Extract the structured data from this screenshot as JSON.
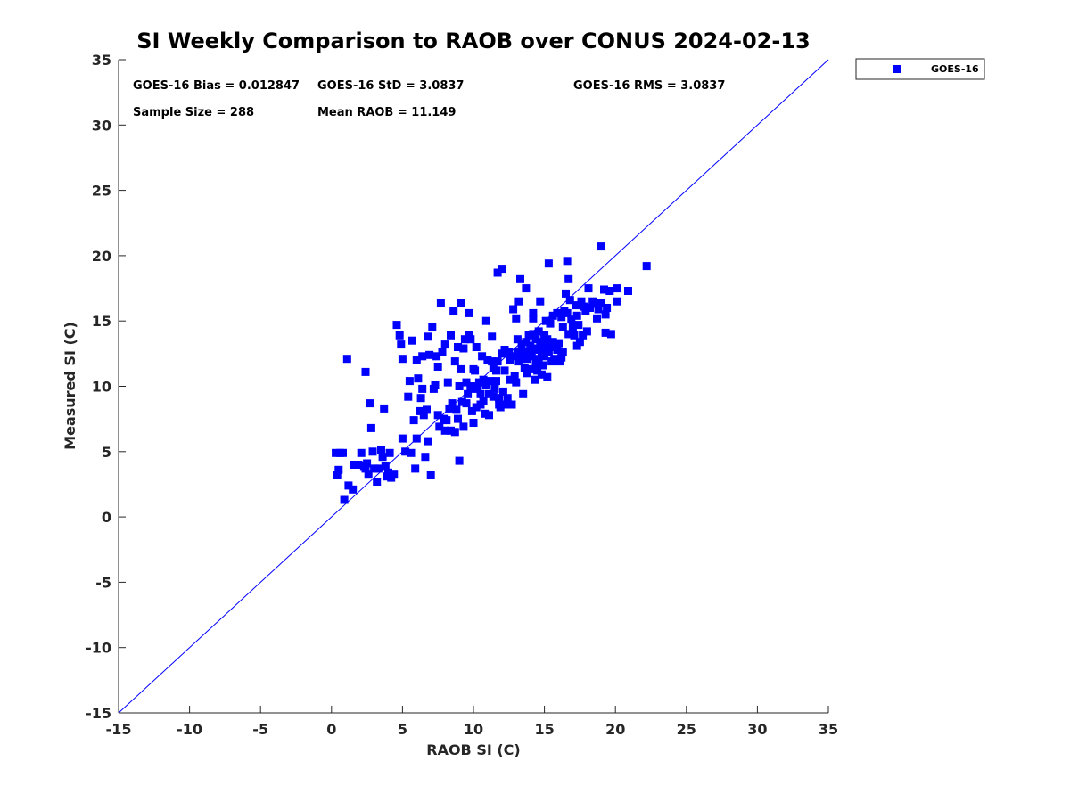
{
  "chart_data": {
    "type": "scatter",
    "title": "SI Weekly Comparison to RAOB over CONUS 2024-02-13",
    "xlabel": "RAOB SI (C)",
    "ylabel": "Measured SI (C)",
    "xlim": [
      -15,
      35
    ],
    "ylim": [
      -15,
      35
    ],
    "xticks": [
      "-15",
      "-10",
      "-5",
      "0",
      "5",
      "10",
      "15",
      "20",
      "25",
      "30",
      "35"
    ],
    "yticks": [
      "-15",
      "-10",
      "-5",
      "0",
      "5",
      "10",
      "15",
      "20",
      "25",
      "30",
      "35"
    ],
    "reference_line": {
      "x": [
        -15,
        35
      ],
      "y": [
        -15,
        35
      ]
    },
    "grid": false,
    "legend": {
      "position": "outside-top-right",
      "entries": [
        "GOES-16"
      ]
    },
    "annotations": {
      "bias": "GOES-16 Bias = 0.012847",
      "std": "GOES-16 StD = 3.0837",
      "rms": "GOES-16 RMS = 3.0837",
      "sample_size": "Sample Size = 288",
      "mean_raob": "Mean RAOB = 11.149"
    },
    "series": [
      {
        "name": "GOES-16",
        "color": "#0000ff",
        "marker": "square",
        "points": [
          [
            0.3,
            4.9
          ],
          [
            0.6,
            4.9
          ],
          [
            0.8,
            4.9
          ],
          [
            0.4,
            3.2
          ],
          [
            0.5,
            3.6
          ],
          [
            0.9,
            1.3
          ],
          [
            1.2,
            2.4
          ],
          [
            1.5,
            2.1
          ],
          [
            1.1,
            12.1
          ],
          [
            1.6,
            4.0
          ],
          [
            1.9,
            4.0
          ],
          [
            2.1,
            4.9
          ],
          [
            2.3,
            3.9
          ],
          [
            2.4,
            3.7
          ],
          [
            2.5,
            4.1
          ],
          [
            2.6,
            3.3
          ],
          [
            2.7,
            8.7
          ],
          [
            2.8,
            6.8
          ],
          [
            2.9,
            5.0
          ],
          [
            2.4,
            11.1
          ],
          [
            3.0,
            3.7
          ],
          [
            3.2,
            2.7
          ],
          [
            3.3,
            3.7
          ],
          [
            3.5,
            5.1
          ],
          [
            3.6,
            4.6
          ],
          [
            3.7,
            8.3
          ],
          [
            3.8,
            3.9
          ],
          [
            3.9,
            3.1
          ],
          [
            4.0,
            3.4
          ],
          [
            4.1,
            4.9
          ],
          [
            4.2,
            3.0
          ],
          [
            4.4,
            3.3
          ],
          [
            4.6,
            14.7
          ],
          [
            4.8,
            13.9
          ],
          [
            4.9,
            13.2
          ],
          [
            5.0,
            6.0
          ],
          [
            5.0,
            12.1
          ],
          [
            5.2,
            5.0
          ],
          [
            5.4,
            9.2
          ],
          [
            5.5,
            10.4
          ],
          [
            5.6,
            4.9
          ],
          [
            5.7,
            13.5
          ],
          [
            5.8,
            7.4
          ],
          [
            5.9,
            3.7
          ],
          [
            6.0,
            6.0
          ],
          [
            6.0,
            12.0
          ],
          [
            6.1,
            10.6
          ],
          [
            6.2,
            8.1
          ],
          [
            6.3,
            9.1
          ],
          [
            6.4,
            9.8
          ],
          [
            6.4,
            12.3
          ],
          [
            6.5,
            7.8
          ],
          [
            6.6,
            4.6
          ],
          [
            6.7,
            8.2
          ],
          [
            6.8,
            5.8
          ],
          [
            6.8,
            13.8
          ],
          [
            6.9,
            12.4
          ],
          [
            7.0,
            3.2
          ],
          [
            7.1,
            14.5
          ],
          [
            7.2,
            9.8
          ],
          [
            7.3,
            10.1
          ],
          [
            7.4,
            12.3
          ],
          [
            7.5,
            7.8
          ],
          [
            7.5,
            11.5
          ],
          [
            7.6,
            6.9
          ],
          [
            7.7,
            16.4
          ],
          [
            7.8,
            12.6
          ],
          [
            7.9,
            7.5
          ],
          [
            8.0,
            6.6
          ],
          [
            8.0,
            13.2
          ],
          [
            8.1,
            7.4
          ],
          [
            8.2,
            10.3
          ],
          [
            8.3,
            8.3
          ],
          [
            8.4,
            6.6
          ],
          [
            8.4,
            13.9
          ],
          [
            8.5,
            8.7
          ],
          [
            8.6,
            15.8
          ],
          [
            8.7,
            6.5
          ],
          [
            8.7,
            11.9
          ],
          [
            8.8,
            8.2
          ],
          [
            8.9,
            7.5
          ],
          [
            8.9,
            13.0
          ],
          [
            9.0,
            4.3
          ],
          [
            9.0,
            10.0
          ],
          [
            9.1,
            11.3
          ],
          [
            9.1,
            16.4
          ],
          [
            9.2,
            8.8
          ],
          [
            9.3,
            6.9
          ],
          [
            9.3,
            12.9
          ],
          [
            9.4,
            13.6
          ],
          [
            9.5,
            8.7
          ],
          [
            9.5,
            10.3
          ],
          [
            9.6,
            9.4
          ],
          [
            9.7,
            13.9
          ],
          [
            9.7,
            15.6
          ],
          [
            9.8,
            13.6
          ],
          [
            9.8,
            9.8
          ],
          [
            9.9,
            8.1
          ],
          [
            9.9,
            10.0
          ],
          [
            10.0,
            11.3
          ],
          [
            10.0,
            7.2
          ],
          [
            10.1,
            11.2
          ],
          [
            10.2,
            8.4
          ],
          [
            10.2,
            13.0
          ],
          [
            10.3,
            9.8
          ],
          [
            10.4,
            10.3
          ],
          [
            10.5,
            8.6
          ],
          [
            10.5,
            9.4
          ],
          [
            10.6,
            12.3
          ],
          [
            10.7,
            10.5
          ],
          [
            10.7,
            8.9
          ],
          [
            10.8,
            7.9
          ],
          [
            10.9,
            10.1
          ],
          [
            10.9,
            15.0
          ],
          [
            11.0,
            12.0
          ],
          [
            11.1,
            9.4
          ],
          [
            11.1,
            7.8
          ],
          [
            11.2,
            10.4
          ],
          [
            11.3,
            11.9
          ],
          [
            11.3,
            13.8
          ],
          [
            11.4,
            9.2
          ],
          [
            11.4,
            11.4
          ],
          [
            11.5,
            9.8
          ],
          [
            11.6,
            11.2
          ],
          [
            11.6,
            10.4
          ],
          [
            11.7,
            11.9
          ],
          [
            11.7,
            18.7
          ],
          [
            11.8,
            9.1
          ],
          [
            11.8,
            8.6
          ],
          [
            11.9,
            8.4
          ],
          [
            12.0,
            12.5
          ],
          [
            12.0,
            19.0
          ],
          [
            12.1,
            9.6
          ],
          [
            12.2,
            11.2
          ],
          [
            12.2,
            12.8
          ],
          [
            12.3,
            8.6
          ],
          [
            12.4,
            9.1
          ],
          [
            12.5,
            12.6
          ],
          [
            12.6,
            10.5
          ],
          [
            12.6,
            12.0
          ],
          [
            12.7,
            8.6
          ],
          [
            12.8,
            15.9
          ],
          [
            12.9,
            10.8
          ],
          [
            12.9,
            12.3
          ],
          [
            13.0,
            10.3
          ],
          [
            13.0,
            15.2
          ],
          [
            13.1,
            12.6
          ],
          [
            13.1,
            13.6
          ],
          [
            13.2,
            16.5
          ],
          [
            13.2,
            11.9
          ],
          [
            13.3,
            18.2
          ],
          [
            13.4,
            12.1
          ],
          [
            13.4,
            13.2
          ],
          [
            13.5,
            9.4
          ],
          [
            13.6,
            12.6
          ],
          [
            13.6,
            11.4
          ],
          [
            13.7,
            17.5
          ],
          [
            13.7,
            13.4
          ],
          [
            13.8,
            12.1
          ],
          [
            13.8,
            11.0
          ],
          [
            13.9,
            13.9
          ],
          [
            13.9,
            12.5
          ],
          [
            14.0,
            11.3
          ],
          [
            14.0,
            13.1
          ],
          [
            14.1,
            12.3
          ],
          [
            14.2,
            14.0
          ],
          [
            14.2,
            15.2
          ],
          [
            14.2,
            15.6
          ],
          [
            14.3,
            12.8
          ],
          [
            14.3,
            10.5
          ],
          [
            14.4,
            11.8
          ],
          [
            14.4,
            13.6
          ],
          [
            14.5,
            12.9
          ],
          [
            14.5,
            11.2
          ],
          [
            14.6,
            14.2
          ],
          [
            14.6,
            12.1
          ],
          [
            14.7,
            13.4
          ],
          [
            14.7,
            16.5
          ],
          [
            14.8,
            10.9
          ],
          [
            14.8,
            12.6
          ],
          [
            14.9,
            13.0
          ],
          [
            14.9,
            11.6
          ],
          [
            15.0,
            12.3
          ],
          [
            15.0,
            13.9
          ],
          [
            15.1,
            15.0
          ],
          [
            15.1,
            12.8
          ],
          [
            15.2,
            10.7
          ],
          [
            15.2,
            13.6
          ],
          [
            15.3,
            19.4
          ],
          [
            15.3,
            12.6
          ],
          [
            15.4,
            14.8
          ],
          [
            15.4,
            13.0
          ],
          [
            15.5,
            11.9
          ],
          [
            15.6,
            15.4
          ],
          [
            15.6,
            13.4
          ],
          [
            15.7,
            12.1
          ],
          [
            15.8,
            13.1
          ],
          [
            15.9,
            15.6
          ],
          [
            15.9,
            12.8
          ],
          [
            16.0,
            13.3
          ],
          [
            16.1,
            11.9
          ],
          [
            16.2,
            15.3
          ],
          [
            16.2,
            12.2
          ],
          [
            16.3,
            14.5
          ],
          [
            16.3,
            12.6
          ],
          [
            16.4,
            15.8
          ],
          [
            16.5,
            17.1
          ],
          [
            16.6,
            19.6
          ],
          [
            16.6,
            15.6
          ],
          [
            16.7,
            18.2
          ],
          [
            16.7,
            14.0
          ],
          [
            16.8,
            16.6
          ],
          [
            16.9,
            15.1
          ],
          [
            17.0,
            14.5
          ],
          [
            17.1,
            13.9
          ],
          [
            17.2,
            16.2
          ],
          [
            17.3,
            15.4
          ],
          [
            17.3,
            13.1
          ],
          [
            17.4,
            14.7
          ],
          [
            17.5,
            13.4
          ],
          [
            17.6,
            16.5
          ],
          [
            17.7,
            13.9
          ],
          [
            17.8,
            16.1
          ],
          [
            17.9,
            15.8
          ],
          [
            18.0,
            14.2
          ],
          [
            18.1,
            17.5
          ],
          [
            18.2,
            16.0
          ],
          [
            18.4,
            16.5
          ],
          [
            18.6,
            16.3
          ],
          [
            18.7,
            15.2
          ],
          [
            18.8,
            15.9
          ],
          [
            19.0,
            20.7
          ],
          [
            19.0,
            16.4
          ],
          [
            19.2,
            17.4
          ],
          [
            19.3,
            14.1
          ],
          [
            19.3,
            15.5
          ],
          [
            19.4,
            16.0
          ],
          [
            19.6,
            17.3
          ],
          [
            19.7,
            14.0
          ],
          [
            20.1,
            17.5
          ],
          [
            20.1,
            16.5
          ],
          [
            20.9,
            17.3
          ],
          [
            22.2,
            19.2
          ]
        ]
      }
    ]
  }
}
